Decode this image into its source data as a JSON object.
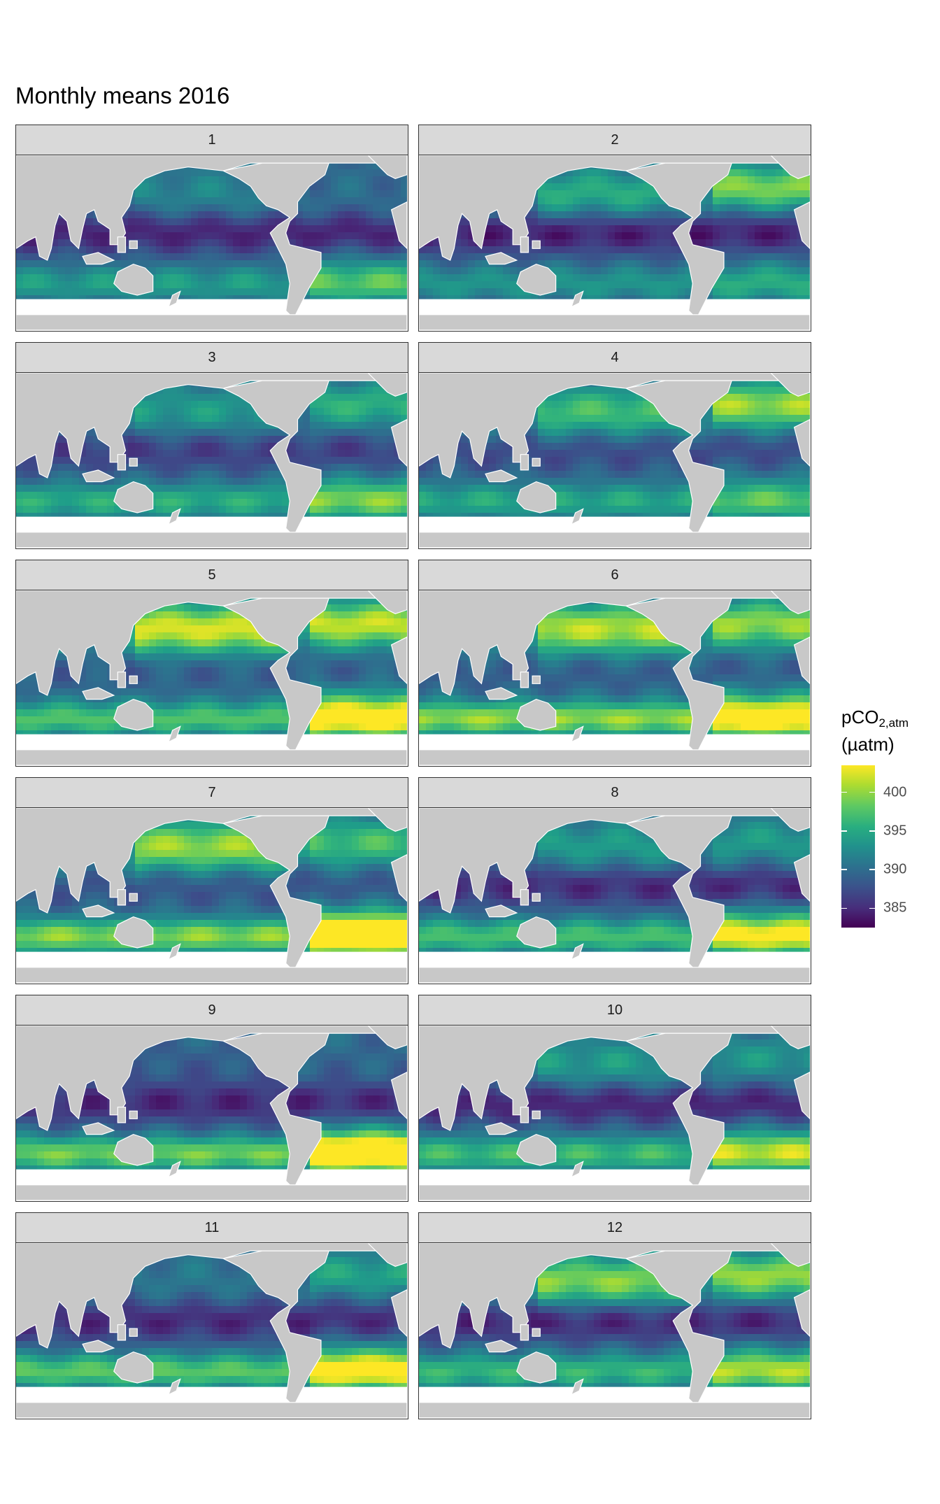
{
  "title": "Monthly means 2016",
  "panels": [
    {
      "label": "1"
    },
    {
      "label": "2"
    },
    {
      "label": "3"
    },
    {
      "label": "4"
    },
    {
      "label": "5"
    },
    {
      "label": "6"
    },
    {
      "label": "7"
    },
    {
      "label": "8"
    },
    {
      "label": "9"
    },
    {
      "label": "10"
    },
    {
      "label": "11"
    },
    {
      "label": "12"
    }
  ],
  "legend": {
    "title_main": "pCO",
    "title_sub": "2,atm",
    "unit": "(µatm)",
    "ticks": [
      {
        "label": "400",
        "value": 400
      },
      {
        "label": "395",
        "value": 395
      },
      {
        "label": "390",
        "value": 390
      },
      {
        "label": "385",
        "value": 385
      }
    ],
    "range": [
      382.5,
      403.5
    ],
    "palette": "viridis"
  },
  "colors": {
    "land": "#c8c8c8",
    "strip": "#d9d9d9",
    "low": "#440154",
    "high": "#fde725"
  }
}
